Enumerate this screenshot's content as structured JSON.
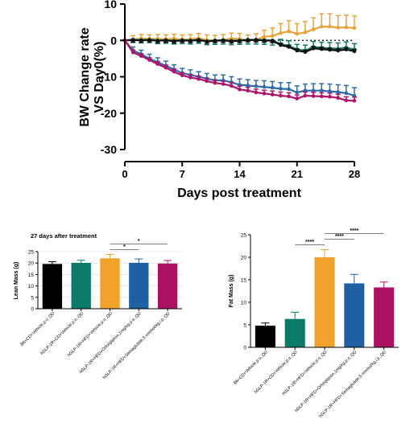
{
  "chart_data": [
    {
      "type": "line",
      "title": "",
      "xlabel": "Days post treatment",
      "ylabel": "BW Change rate VS Day0(%)",
      "xlim": [
        0,
        28
      ],
      "ylim": [
        -30,
        10
      ],
      "x_ticks": [
        "0",
        "7",
        "14",
        "21",
        "28"
      ],
      "y_ticks": [
        "10",
        "0",
        "-10",
        "-20",
        "-30"
      ],
      "x": [
        0,
        1,
        2,
        3,
        4,
        5,
        6,
        7,
        8,
        9,
        10,
        11,
        12,
        13,
        14,
        15,
        16,
        17,
        18,
        19,
        20,
        21,
        22,
        23,
        24,
        25,
        26,
        27,
        28
      ],
      "series": [
        {
          "color": "#e8a33a",
          "values": [
            0,
            0.3,
            0.5,
            0.4,
            0.4,
            0.3,
            0.5,
            0.2,
            0.3,
            0.6,
            0.1,
            0.0,
            0.2,
            0.5,
            0.4,
            0.0,
            0.2,
            1.0,
            1.2,
            2.0,
            2.5,
            1.8,
            2.2,
            3.0,
            3.8,
            3.8,
            3.5,
            3.6,
            3.4
          ],
          "err": [
            0,
            1.0,
            1.1,
            1.1,
            1.2,
            1.2,
            1.2,
            1.3,
            1.3,
            1.3,
            1.4,
            1.4,
            1.4,
            1.5,
            1.5,
            1.5,
            1.6,
            1.8,
            2.2,
            2.6,
            2.9,
            2.8,
            3.0,
            3.2,
            3.5,
            3.5,
            3.3,
            3.3,
            3.3
          ]
        },
        {
          "color": "#0b7a66",
          "values": [
            0,
            0.2,
            0.1,
            0.2,
            0.0,
            0.1,
            -0.1,
            0.1,
            0.0,
            0.2,
            -0.2,
            0.0,
            0.1,
            -0.1,
            0.0,
            0.2,
            0.2,
            0.1,
            0.0,
            -1.0,
            -1.5,
            -2.5,
            -2.8,
            -1.8,
            -2.0,
            -2.2,
            -2.3,
            -2.0,
            -2.5
          ],
          "err": [
            0,
            0.8,
            0.8,
            0.8,
            0.9,
            0.9,
            0.9,
            1.0,
            1.0,
            1.0,
            1.0,
            1.1,
            1.1,
            1.1,
            1.1,
            1.2,
            1.2,
            1.2,
            1.3,
            1.3,
            1.4,
            1.4,
            1.5,
            1.5,
            1.5,
            1.6,
            1.6,
            1.6,
            1.6
          ]
        },
        {
          "color": "#111111",
          "values": [
            0,
            0.1,
            0.0,
            0.1,
            -0.1,
            0.0,
            -0.2,
            0.0,
            -0.1,
            0.1,
            -0.3,
            -0.1,
            0.0,
            -0.2,
            -0.1,
            0.1,
            0.1,
            0.0,
            -0.1,
            -1.3,
            -1.8,
            -2.8,
            -3.2,
            -2.2,
            -2.4,
            -2.6,
            -2.8,
            -2.5,
            -3.0
          ],
          "err": [
            0,
            0.5,
            0.5,
            0.5,
            0.5,
            0.5,
            0.5,
            0.5,
            0.5,
            0.5,
            0.5,
            0.5,
            0.5,
            0.5,
            0.5,
            0.5,
            0.5,
            0.5,
            0.5,
            0.5,
            0.5,
            0.5,
            0.5,
            0.5,
            0.5,
            0.5,
            0.5,
            0.5,
            0.5
          ]
        },
        {
          "color": "#2d6aa8",
          "values": [
            0,
            -2.8,
            -3.8,
            -5.0,
            -6.0,
            -7.0,
            -8.0,
            -9.0,
            -9.5,
            -10.0,
            -10.5,
            -11.0,
            -11.0,
            -11.5,
            -12.2,
            -12.4,
            -12.6,
            -12.8,
            -13.0,
            -13.3,
            -13.4,
            -14.3,
            -13.8,
            -13.8,
            -13.8,
            -14.0,
            -14.2,
            -14.5,
            -15.2
          ],
          "err": [
            0,
            1.0,
            1.1,
            1.2,
            1.2,
            1.3,
            1.3,
            1.3,
            1.4,
            1.4,
            1.4,
            1.5,
            1.5,
            1.5,
            1.6,
            1.6,
            1.6,
            1.7,
            1.7,
            1.7,
            1.8,
            1.8,
            1.8,
            1.9,
            1.9,
            2.0,
            2.0,
            2.1,
            2.2
          ]
        },
        {
          "color": "#b0146a",
          "values": [
            0,
            -3.3,
            -4.3,
            -5.4,
            -6.5,
            -7.5,
            -8.6,
            -9.6,
            -10.2,
            -10.6,
            -11.2,
            -11.7,
            -12.0,
            -12.5,
            -13.5,
            -13.8,
            -14.3,
            -14.6,
            -14.9,
            -15.2,
            -15.4,
            -16.0,
            -15.2,
            -15.3,
            -15.4,
            -15.5,
            -15.8,
            -16.5,
            -16.6
          ],
          "err": [
            0,
            0.6,
            0.6,
            0.6,
            0.7,
            0.7,
            0.7,
            0.7,
            0.8,
            0.8,
            0.8,
            0.8,
            0.8,
            0.9,
            0.9,
            0.9,
            0.9,
            0.9,
            1.0,
            1.0,
            1.0,
            1.0,
            1.0,
            1.0,
            1.0,
            1.0,
            1.0,
            1.0,
            1.0
          ]
        }
      ],
      "grid": false,
      "legend": "none"
    },
    {
      "type": "bar",
      "title": "27 days after treatment",
      "xlabel": "",
      "ylabel": "Lean Mass (g)",
      "ylim": [
        0,
        25
      ],
      "y_ticks": [
        "0",
        "5",
        "10",
        "15",
        "20",
        "25"
      ],
      "categories": [
        "B6+CD+Vehicle,p.o.,QD",
        "hGLP-1R+CD+Vehicle,p.o.,QD",
        "hGLP-1R+HFD+Vehicle,p.o.,QD",
        "hGLP-1R+HFD+Orforglipron,1mg/kg,p.o.,QD",
        "hGLP-1R+HFD+Semaglutide,5 nmmol/kg,i.p.,QD"
      ],
      "values": [
        19.6,
        20.1,
        22.1,
        20.1,
        19.8
      ],
      "err": [
        1.0,
        1.1,
        1.7,
        1.7,
        1.3
      ],
      "colors": [
        "#000000",
        "#0b7a66",
        "#f0a22c",
        "#1f5fa3",
        "#ad1262"
      ],
      "significance": [
        {
          "from": 2,
          "to": 3,
          "label": "*"
        },
        {
          "from": 2,
          "to": 4,
          "label": "*"
        }
      ],
      "grid": true
    },
    {
      "type": "bar",
      "title": "",
      "xlabel": "",
      "ylabel": "Fat Mass (g)",
      "ylim": [
        0,
        25
      ],
      "y_ticks": [
        "0",
        "5",
        "10",
        "15",
        "20",
        "25"
      ],
      "categories": [
        "B6+CD+Vehicle,p.o.,QD",
        "hGLP-1R+CD+Vehicle,p.o.,QD",
        "hGLP-1R+HFD+Vehicle,p.o.,QD",
        "hGLP-1R+HFD+Orforglipron,1mg/kg,p.o.,QD",
        "hGLP-1R+HFD+Semaglutide,5 nmmol/kg,i.p.,QD"
      ],
      "values": [
        4.8,
        6.3,
        20.0,
        14.2,
        13.3
      ],
      "err": [
        0.6,
        1.5,
        1.7,
        2.0,
        1.2
      ],
      "colors": [
        "#000000",
        "#0b7a66",
        "#f0a22c",
        "#1f5fa3",
        "#ad1262"
      ],
      "significance": [
        {
          "from": 1,
          "to": 2,
          "label": "****"
        },
        {
          "from": 2,
          "to": 3,
          "label": "****"
        },
        {
          "from": 2,
          "to": 4,
          "label": "****"
        }
      ],
      "grid": false
    }
  ]
}
